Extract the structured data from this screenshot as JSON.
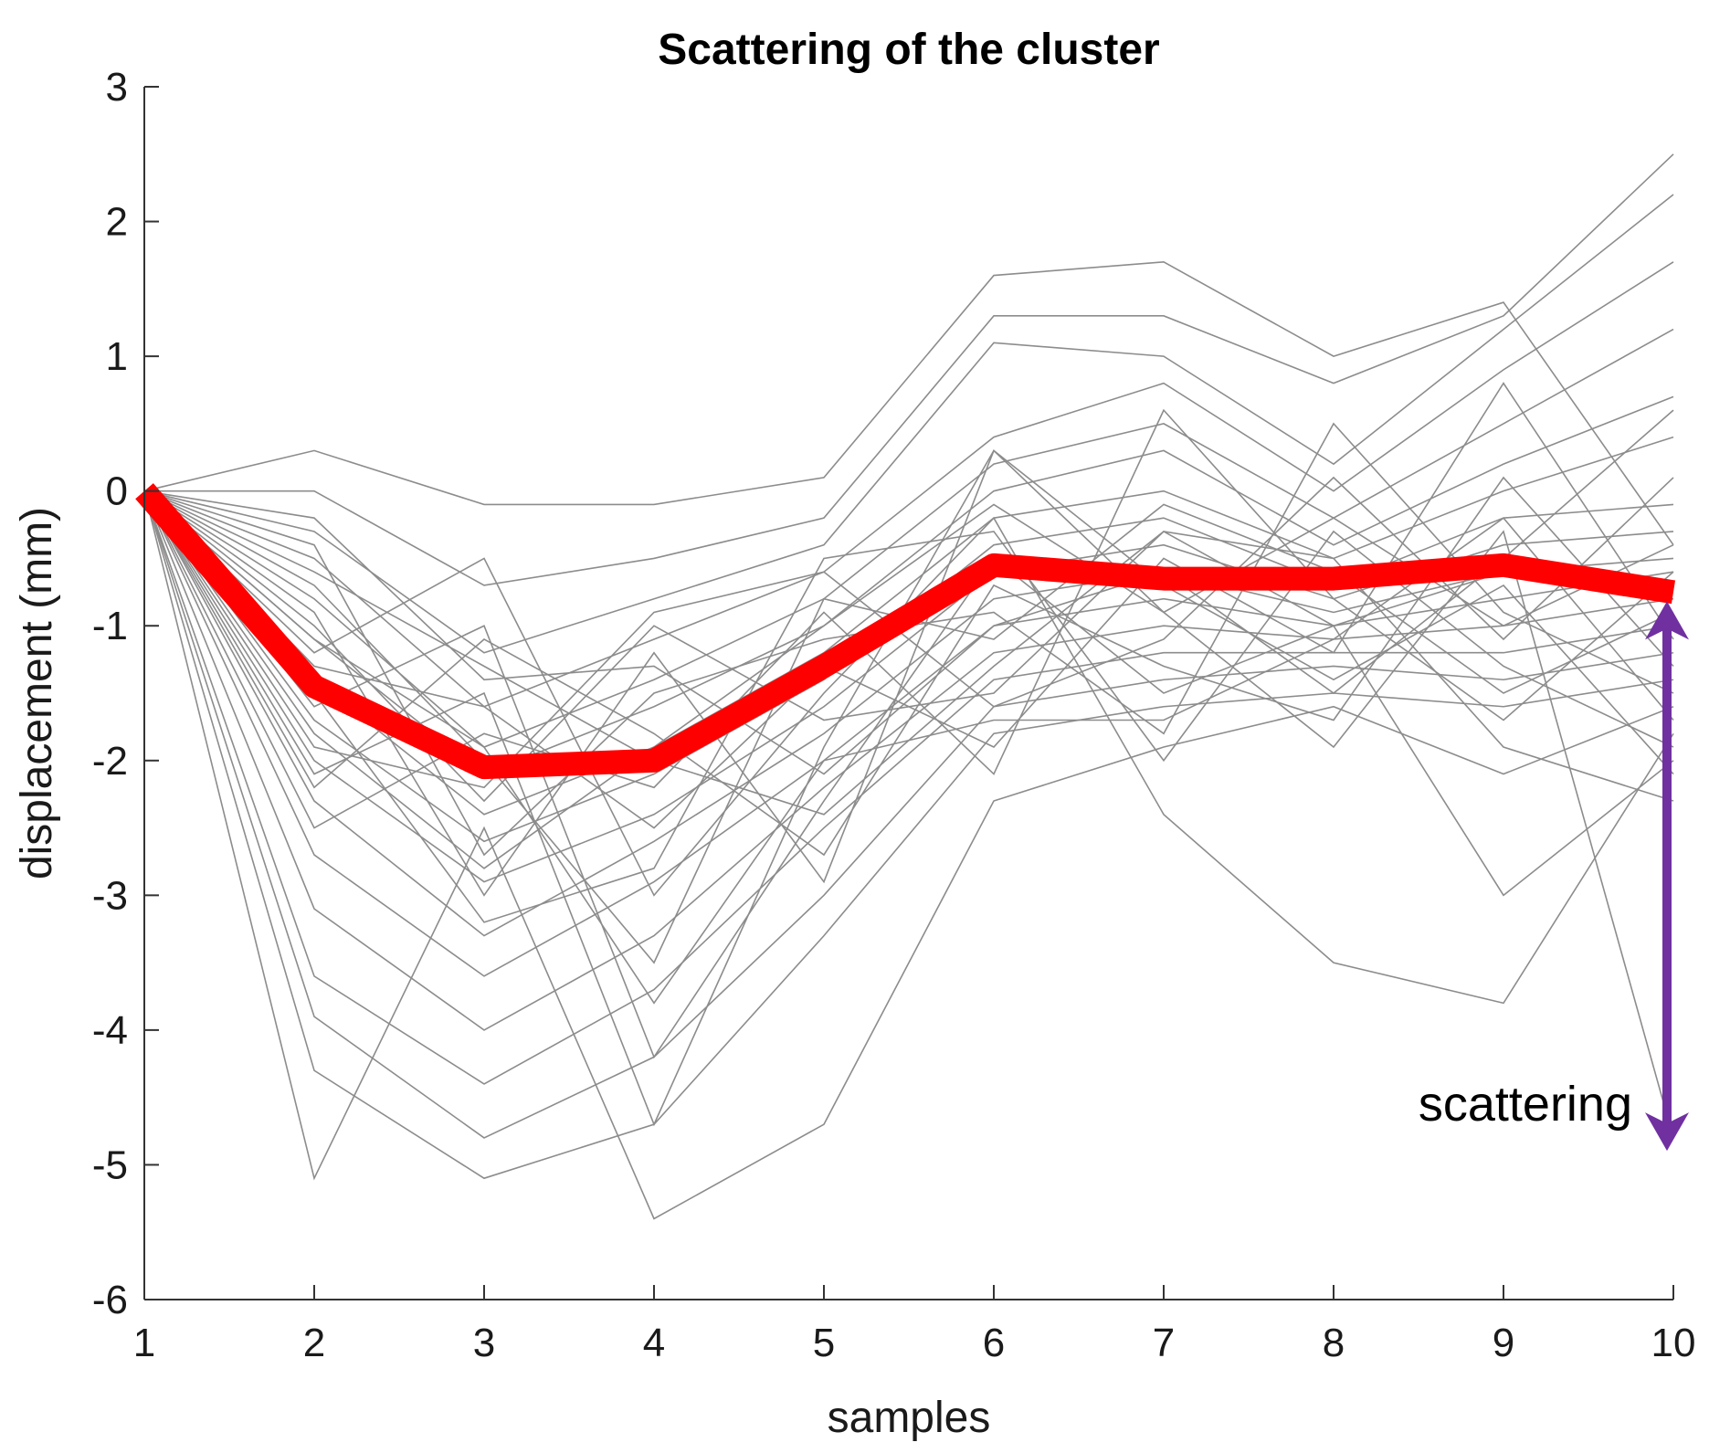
{
  "chart_data": {
    "type": "line",
    "title": "Scattering of the cluster",
    "xlabel": "samples",
    "ylabel": "displacement (mm)",
    "x": [
      1,
      2,
      3,
      4,
      5,
      6,
      7,
      8,
      9,
      10
    ],
    "xticks": [
      1,
      2,
      3,
      4,
      5,
      6,
      7,
      8,
      9,
      10
    ],
    "yticks": [
      3,
      2,
      1,
      0,
      -1,
      -2,
      -3,
      -4,
      -5,
      -6
    ],
    "xlim": [
      1,
      10
    ],
    "ylim": [
      -6,
      3
    ],
    "grid": false,
    "colors": {
      "cluster": "#8c8c8c",
      "mean": "#ff0000",
      "arrow": "#7030a0"
    },
    "series": [
      {
        "role": "cluster",
        "values": [
          0,
          0.3,
          -0.1,
          -0.1,
          0.1,
          1.6,
          1.7,
          1.0,
          1.4,
          -0.4
        ]
      },
      {
        "role": "cluster",
        "values": [
          0,
          0.0,
          -0.7,
          -0.5,
          -0.2,
          1.3,
          1.3,
          0.8,
          1.3,
          2.5
        ]
      },
      {
        "role": "cluster",
        "values": [
          0,
          -0.3,
          -1.2,
          -0.8,
          -0.4,
          1.1,
          1.0,
          0.2,
          1.2,
          2.2
        ]
      },
      {
        "role": "cluster",
        "values": [
          0,
          -0.5,
          -1.6,
          -1.1,
          -0.6,
          0.4,
          0.8,
          0.0,
          0.9,
          1.7
        ]
      },
      {
        "role": "cluster",
        "values": [
          0,
          -0.8,
          -1.9,
          -1.4,
          -0.8,
          0.2,
          0.5,
          -0.2,
          0.5,
          1.2
        ]
      },
      {
        "role": "cluster",
        "values": [
          0,
          -1.1,
          -2.1,
          -1.6,
          -1.0,
          0.0,
          0.3,
          -0.4,
          0.2,
          0.7
        ]
      },
      {
        "role": "cluster",
        "values": [
          0,
          -1.4,
          -2.4,
          -1.9,
          -1.2,
          -0.2,
          0.0,
          -0.5,
          0.0,
          0.4
        ]
      },
      {
        "role": "cluster",
        "values": [
          0,
          -1.7,
          -2.6,
          -2.1,
          -1.4,
          -0.4,
          -0.2,
          -0.7,
          -0.2,
          -0.1
        ]
      },
      {
        "role": "cluster",
        "values": [
          0,
          -2.0,
          -2.9,
          -2.4,
          -1.6,
          -0.6,
          -0.4,
          -0.8,
          -0.4,
          -0.3
        ]
      },
      {
        "role": "cluster",
        "values": [
          0,
          -2.3,
          -3.3,
          -2.6,
          -1.8,
          -0.8,
          -0.6,
          -0.9,
          -0.6,
          -0.5
        ]
      },
      {
        "role": "cluster",
        "values": [
          0,
          -2.7,
          -3.6,
          -2.9,
          -2.0,
          -1.0,
          -0.8,
          -1.0,
          -0.8,
          -0.6
        ]
      },
      {
        "role": "cluster",
        "values": [
          0,
          -3.1,
          -4.0,
          -3.3,
          -2.2,
          -1.2,
          -1.0,
          -1.1,
          -1.0,
          -0.8
        ]
      },
      {
        "role": "cluster",
        "values": [
          0,
          -3.6,
          -4.4,
          -3.7,
          -2.5,
          -1.4,
          -1.2,
          -1.2,
          -1.2,
          -1.0
        ]
      },
      {
        "role": "cluster",
        "values": [
          0,
          -3.9,
          -4.8,
          -4.2,
          -3.0,
          -1.6,
          -1.4,
          -1.3,
          -1.4,
          -1.2
        ]
      },
      {
        "role": "cluster",
        "values": [
          0,
          -4.3,
          -5.1,
          -4.7,
          -3.3,
          -1.8,
          -1.6,
          -1.5,
          -1.6,
          -1.4
        ]
      },
      {
        "role": "cluster",
        "values": [
          0,
          -5.1,
          -2.5,
          -5.4,
          -4.7,
          -2.3,
          -1.9,
          -1.6,
          -2.1,
          -1.6
        ]
      },
      {
        "role": "cluster",
        "values": [
          0,
          -1.2,
          -0.5,
          -3.0,
          -1.5,
          -0.2,
          -2.4,
          -3.5,
          -3.8,
          -1.8
        ]
      },
      {
        "role": "cluster",
        "values": [
          0,
          -1.6,
          -1.0,
          -4.2,
          -2.3,
          -0.5,
          -1.5,
          -1.0,
          -3.0,
          -2.0
        ]
      },
      {
        "role": "cluster",
        "values": [
          0,
          -2.1,
          -1.5,
          -4.7,
          -1.9,
          0.3,
          -0.9,
          -1.9,
          -0.3,
          -4.8
        ]
      },
      {
        "role": "cluster",
        "values": [
          0,
          -0.6,
          -1.3,
          -2.0,
          -2.4,
          -1.3,
          -0.3,
          -0.5,
          -1.9,
          -2.3
        ]
      },
      {
        "role": "cluster",
        "values": [
          0,
          -1.9,
          -2.2,
          -0.9,
          -0.6,
          -1.6,
          -1.1,
          0.1,
          -1.1,
          0.1
        ]
      },
      {
        "role": "cluster",
        "values": [
          0,
          -0.9,
          -3.0,
          -1.2,
          -2.9,
          0.3,
          -0.7,
          -1.4,
          -0.7,
          -2.1
        ]
      },
      {
        "role": "cluster",
        "values": [
          0,
          -2.5,
          -1.8,
          -2.2,
          -0.9,
          -2.1,
          0.6,
          -0.8,
          -1.7,
          -0.6
        ]
      },
      {
        "role": "cluster",
        "values": [
          0,
          -0.4,
          -2.7,
          -1.5,
          -1.1,
          -0.9,
          -1.8,
          0.5,
          -0.9,
          -1.5
        ]
      },
      {
        "role": "cluster",
        "values": [
          0,
          -1.3,
          -1.6,
          -2.5,
          -1.3,
          -1.9,
          -0.5,
          -1.2,
          0.8,
          -1.1
        ]
      },
      {
        "role": "cluster",
        "values": [
          0,
          -0.7,
          -2.0,
          -3.5,
          -0.8,
          -1.1,
          -0.1,
          -0.6,
          -1.5,
          -0.9
        ]
      },
      {
        "role": "cluster",
        "values": [
          0,
          -2.2,
          -1.1,
          -1.8,
          -2.7,
          -0.7,
          -1.3,
          -1.7,
          0.1,
          -1.3
        ]
      },
      {
        "role": "cluster",
        "values": [
          0,
          -1.0,
          -2.3,
          -1.0,
          -1.7,
          -1.5,
          -0.3,
          -1.0,
          -0.6,
          -0.7
        ]
      },
      {
        "role": "cluster",
        "values": [
          0,
          -1.5,
          -3.2,
          -2.8,
          -0.5,
          -0.3,
          -2.0,
          -0.3,
          -1.3,
          -1.9
        ]
      },
      {
        "role": "cluster",
        "values": [
          0,
          -0.2,
          -1.4,
          -1.3,
          -2.1,
          -1.0,
          -0.6,
          -1.5,
          -0.5,
          0.6
        ]
      },
      {
        "role": "cluster",
        "values": [
          0,
          -1.8,
          -2.8,
          -1.9,
          -1.0,
          -0.1,
          -0.9,
          -0.2,
          -1.0,
          -0.4
        ]
      },
      {
        "role": "cluster",
        "values": [
          0,
          -1.1,
          -1.9,
          -3.8,
          -2.0,
          -1.7,
          -1.7,
          -1.1,
          -0.2,
          -1.7
        ]
      }
    ],
    "mean": {
      "role": "mean",
      "values": [
        0,
        -1.45,
        -2.05,
        -2.0,
        -1.3,
        -0.55,
        -0.65,
        -0.65,
        -0.55,
        -0.75
      ]
    },
    "annotation": {
      "label": "scattering",
      "x": 10,
      "y_top": -0.75,
      "y_bottom": -4.95
    }
  }
}
